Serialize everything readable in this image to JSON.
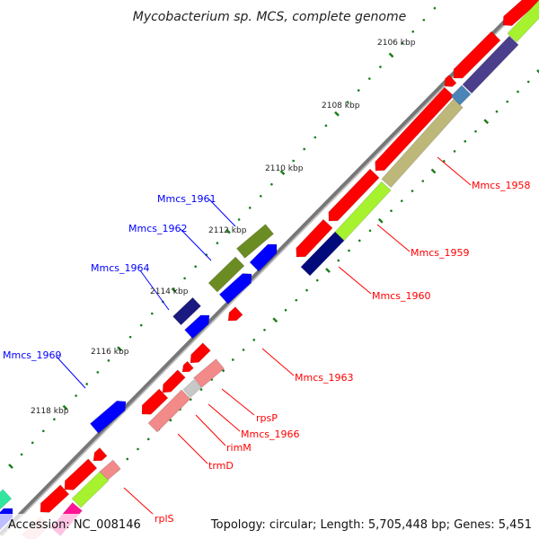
{
  "title": "Mycobacterium sp. MCS, complete genome",
  "footer": {
    "accession": "Accession: NC_008146",
    "summary": "Topology: circular; Length: 5,705,448 bp; Genes: 5,451"
  },
  "ticks": [
    "2106 kbp",
    "2108 kbp",
    "2110 kbp",
    "2112 kbp",
    "2114 kbp",
    "2116 kbp",
    "2118 kbp"
  ],
  "labels_forward": [
    "Mmcs_1958",
    "Mmcs_1959",
    "Mmcs_1960",
    "Mmcs_1963",
    "rpsP",
    "Mmcs_1966",
    "rimM",
    "trmD",
    "rplS"
  ],
  "labels_reverse": [
    "Mmcs_1961",
    "Mmcs_1962",
    "Mmcs_1964",
    "Mmcs_1969"
  ],
  "colors": {
    "forward_label": "#ff0000",
    "reverse_label": "#0000ff",
    "tick": "#1a7f1a",
    "backbone": "#888888"
  }
}
